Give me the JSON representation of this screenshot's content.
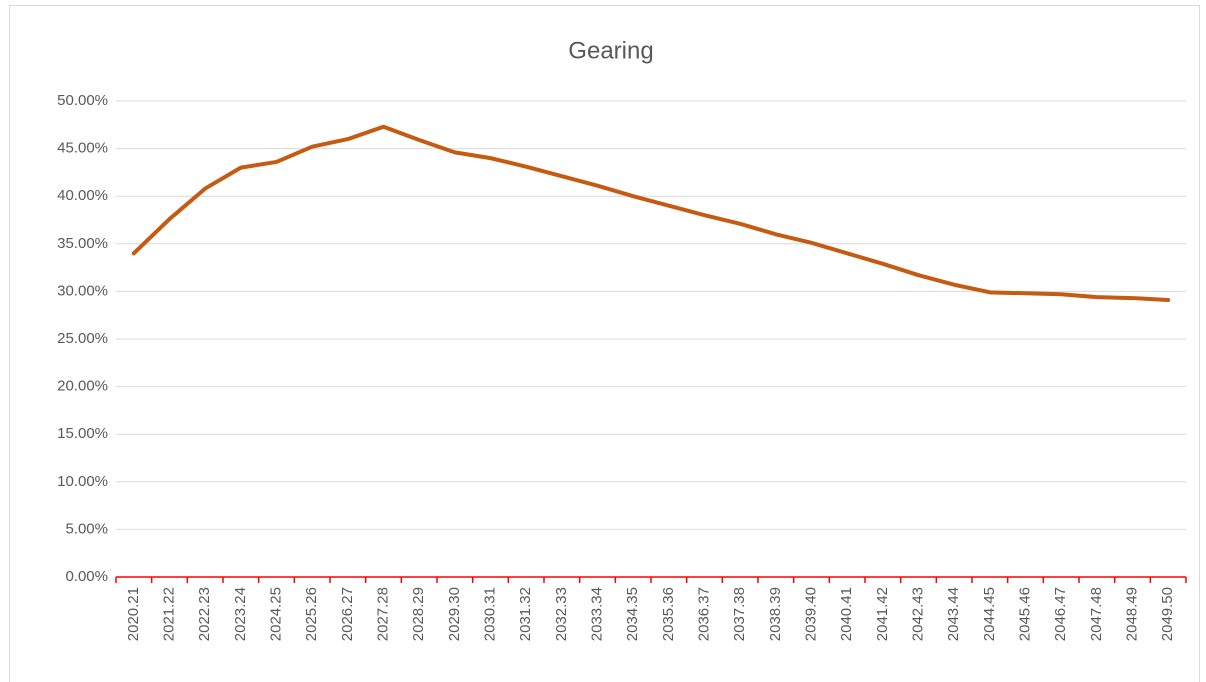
{
  "chart_data": {
    "type": "line",
    "title": "Gearing",
    "categories": [
      "2020.21",
      "2021.22",
      "2022.23",
      "2023.24",
      "2024.25",
      "2025.26",
      "2026.27",
      "2027.28",
      "2028.29",
      "2029.30",
      "2030.31",
      "2031.32",
      "2032.33",
      "2033.34",
      "2034.35",
      "2035.36",
      "2036.37",
      "2037.38",
      "2038.39",
      "2039.40",
      "2040.41",
      "2041.42",
      "2042.43",
      "2043.44",
      "2044.45",
      "2045.46",
      "2046.47",
      "2047.48",
      "2048.49",
      "2049.50"
    ],
    "series": [
      {
        "name": "Gearing",
        "color": "#c55a11",
        "values": [
          34.0,
          37.6,
          40.8,
          43.0,
          43.6,
          45.2,
          46.0,
          47.3,
          45.9,
          44.6,
          44.0,
          43.1,
          42.1,
          41.1,
          40.0,
          39.0,
          38.0,
          37.1,
          36.0,
          35.1,
          34.0,
          32.9,
          31.7,
          30.7,
          29.9,
          29.8,
          29.7,
          29.4,
          29.3,
          29.1
        ]
      }
    ],
    "ylim": [
      0,
      50
    ],
    "yticks": [
      {
        "value": 0,
        "label": "0.00%"
      },
      {
        "value": 5,
        "label": "5.00%"
      },
      {
        "value": 10,
        "label": "10.00%"
      },
      {
        "value": 15,
        "label": "15.00%"
      },
      {
        "value": 20,
        "label": "20.00%"
      },
      {
        "value": 25,
        "label": "25.00%"
      },
      {
        "value": 30,
        "label": "30.00%"
      },
      {
        "value": 35,
        "label": "35.00%"
      },
      {
        "value": 40,
        "label": "40.00%"
      },
      {
        "value": 45,
        "label": "45.00%"
      },
      {
        "value": 50,
        "label": "50.00%"
      }
    ],
    "grid": true,
    "axis_color": "#ff0000"
  }
}
